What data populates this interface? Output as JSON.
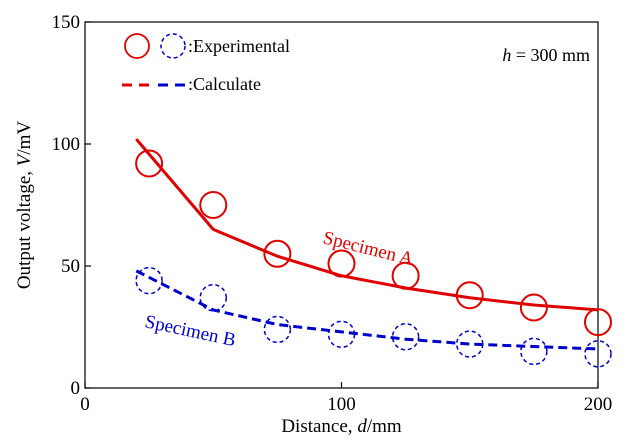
{
  "chart_data": {
    "type": "line",
    "title": "",
    "xlabel_prefix": "Distance, ",
    "xlabel_var": "d",
    "xlabel_unit": "/mm",
    "ylabel_prefix": "Output voltage, ",
    "ylabel_var": "V",
    "ylabel_unit": "/mV",
    "xlim": [
      0,
      200
    ],
    "ylim": [
      0,
      150
    ],
    "xticks": [
      0,
      100,
      200
    ],
    "yticks": [
      0,
      50,
      100,
      150
    ],
    "grid": false,
    "legend": {
      "position": "top-left",
      "experimental_label": ":Experimental",
      "calculate_label": ":Calculate"
    },
    "annotation": {
      "var": "h",
      "text": " = 300 mm"
    },
    "series": [
      {
        "name": "Specimen A",
        "color": "#e00000",
        "experimental": {
          "x": [
            25,
            50,
            75,
            100,
            125,
            150,
            175,
            200
          ],
          "y": [
            92,
            75,
            55,
            51,
            46,
            38,
            33,
            27
          ]
        },
        "calculated": {
          "x": [
            20,
            50,
            75,
            100,
            125,
            150,
            175,
            200
          ],
          "y": [
            102,
            65,
            54,
            46,
            41,
            37,
            34,
            32
          ]
        }
      },
      {
        "name": "Specimen B",
        "color": "#0000cc",
        "experimental": {
          "x": [
            25,
            50,
            75,
            100,
            125,
            150,
            175,
            200
          ],
          "y": [
            44,
            37,
            24,
            22,
            21,
            18,
            15,
            14
          ]
        },
        "calculated": {
          "x": [
            20,
            50,
            75,
            100,
            125,
            150,
            175,
            200
          ],
          "y": [
            48,
            32,
            26,
            23,
            20,
            18,
            17,
            16
          ]
        }
      }
    ]
  }
}
